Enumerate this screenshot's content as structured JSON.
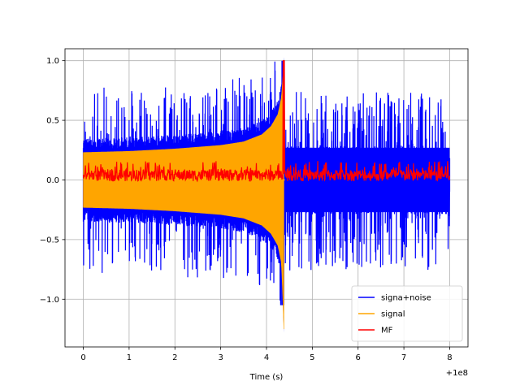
{
  "chart_data": {
    "type": "line",
    "title": "",
    "xlabel": "Time (s)",
    "ylabel": "",
    "x_offset_label": "+1e8",
    "xlim": [
      -0.4,
      8.4
    ],
    "ylim": [
      -1.4,
      1.1
    ],
    "x_ticks": [
      0,
      1,
      2,
      3,
      4,
      5,
      6,
      7,
      8
    ],
    "x_tick_labels": [
      "0",
      "1",
      "2",
      "3",
      "4",
      "5",
      "6",
      "7",
      "8"
    ],
    "y_ticks": [
      -1.0,
      -0.5,
      0.0,
      0.5,
      1.0
    ],
    "y_tick_labels": [
      "−1.0",
      "−0.5",
      "0.0",
      "0.5",
      "1.0"
    ],
    "grid": true,
    "legend_position": "lower-right",
    "merger_time": 4.38,
    "series": [
      {
        "name": "signa+noise",
        "color": "#0000ff",
        "description_envelope": {
          "upper_start": 0.23,
          "upper_peak": 1.0,
          "lower_start": -0.23,
          "lower_peak": -1.25
        },
        "post_merger_range": [
          -0.75,
          0.72
        ],
        "x_range": [
          0,
          8
        ]
      },
      {
        "name": "signal",
        "color": "#ffa500",
        "upper_envelope": [
          [
            0,
            0.23
          ],
          [
            1,
            0.24
          ],
          [
            2,
            0.26
          ],
          [
            3,
            0.29
          ],
          [
            3.5,
            0.32
          ],
          [
            3.9,
            0.38
          ],
          [
            4.1,
            0.45
          ],
          [
            4.25,
            0.55
          ],
          [
            4.33,
            0.7
          ],
          [
            4.38,
            1.0
          ]
        ],
        "lower_envelope": [
          [
            0,
            -0.23
          ],
          [
            1,
            -0.24
          ],
          [
            2,
            -0.26
          ],
          [
            3,
            -0.29
          ],
          [
            3.5,
            -0.32
          ],
          [
            3.9,
            -0.38
          ],
          [
            4.1,
            -0.45
          ],
          [
            4.25,
            -0.55
          ],
          [
            4.33,
            -0.7
          ],
          [
            4.38,
            -1.25
          ]
        ],
        "x_range": [
          0,
          4.4
        ]
      },
      {
        "name": "MF",
        "color": "#ff0000",
        "baseline_range": [
          0.0,
          0.15
        ],
        "peak": [
          4.38,
          1.0
        ],
        "x_range": [
          0,
          8
        ]
      }
    ]
  }
}
